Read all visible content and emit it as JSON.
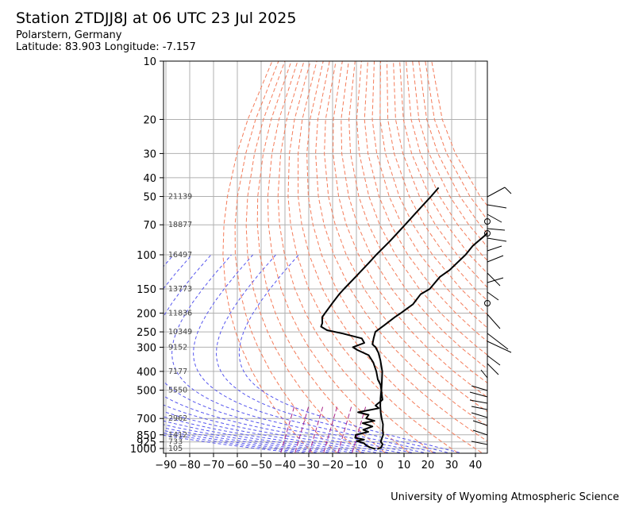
{
  "header": {
    "title": "Station 2TDJJ8J at 06 UTC 23 Jul 2025",
    "location": "Polarstern, Germany",
    "coordinates": "Latitude: 83.903 Longitude: -7.157"
  },
  "footer": {
    "credit": "University of Wyoming Atmospheric Science"
  },
  "chart_data": {
    "type": "line",
    "subtype": "skew-T log-P sounding",
    "x_axis": {
      "ticks": [
        -90,
        -80,
        -70,
        -60,
        -50,
        -40,
        -30,
        -20,
        -10,
        0,
        10,
        20,
        30,
        40
      ],
      "range": [
        -90,
        45
      ]
    },
    "y_axis": {
      "scale": "log",
      "ticks": [
        10,
        20,
        30,
        40,
        50,
        70,
        100,
        150,
        200,
        250,
        300,
        400,
        500,
        700,
        850,
        925,
        1000
      ],
      "range": [
        10,
        1050
      ]
    },
    "grid": true,
    "height_labels": [
      {
        "p": 50,
        "text": "21139"
      },
      {
        "p": 70,
        "text": "18877"
      },
      {
        "p": 100,
        "text": "16497"
      },
      {
        "p": 150,
        "text": "13773"
      },
      {
        "p": 200,
        "text": "11836"
      },
      {
        "p": 250,
        "text": "10349"
      },
      {
        "p": 300,
        "text": "9152"
      },
      {
        "p": 400,
        "text": "7177"
      },
      {
        "p": 500,
        "text": "5550"
      },
      {
        "p": 700,
        "text": "2962"
      },
      {
        "p": 850,
        "text": "1412"
      },
      {
        "p": 925,
        "text": "733"
      },
      {
        "p": 1000,
        "text": "105"
      }
    ],
    "series": [
      {
        "color": "#000000",
        "points": [
          {
            "p": 1007,
            "t": -1
          },
          {
            "p": 990,
            "t": 0
          },
          {
            "p": 950,
            "t": -0.8
          },
          {
            "p": 925,
            "t": -2.5
          },
          {
            "p": 900,
            "t": -3.2
          },
          {
            "p": 850,
            "t": -4.5
          },
          {
            "p": 800,
            "t": -6.8
          },
          {
            "p": 750,
            "t": -9
          },
          {
            "p": 700,
            "t": -12
          },
          {
            "p": 650,
            "t": -15
          },
          {
            "p": 600,
            "t": -18
          },
          {
            "p": 550,
            "t": -21
          },
          {
            "p": 500,
            "t": -24
          },
          {
            "p": 450,
            "t": -27.5
          },
          {
            "p": 400,
            "t": -31.5
          },
          {
            "p": 350,
            "t": -37
          },
          {
            "p": 320,
            "t": -41
          },
          {
            "p": 300,
            "t": -44.5
          },
          {
            "p": 290,
            "t": -47
          },
          {
            "p": 270,
            "t": -49
          },
          {
            "p": 250,
            "t": -51
          },
          {
            "p": 230,
            "t": -50
          },
          {
            "p": 210,
            "t": -49
          },
          {
            "p": 200,
            "t": -48.2
          },
          {
            "p": 180,
            "t": -46.8
          },
          {
            "p": 160,
            "t": -47.8
          },
          {
            "p": 150,
            "t": -46.2
          },
          {
            "p": 130,
            "t": -47
          },
          {
            "p": 120,
            "t": -45.8
          },
          {
            "p": 100,
            "t": -45.5
          },
          {
            "p": 90,
            "t": -46.2
          },
          {
            "p": 80,
            "t": -45.5
          },
          {
            "p": 70,
            "t": -45.6
          },
          {
            "p": 60,
            "t": -45.2
          },
          {
            "p": 50,
            "t": -44.8
          },
          {
            "p": 45,
            "t": -45.3
          }
        ]
      },
      {
        "color": "#000000",
        "points": [
          {
            "p": 1007,
            "t": -1.8
          },
          {
            "p": 985,
            "t": -5
          },
          {
            "p": 960,
            "t": -7.5
          },
          {
            "p": 940,
            "t": -9
          },
          {
            "p": 915,
            "t": -13
          },
          {
            "p": 900,
            "t": -10.5
          },
          {
            "p": 880,
            "t": -15
          },
          {
            "p": 850,
            "t": -16
          },
          {
            "p": 820,
            "t": -12
          },
          {
            "p": 800,
            "t": -15
          },
          {
            "p": 770,
            "t": -12.5
          },
          {
            "p": 740,
            "t": -18
          },
          {
            "p": 720,
            "t": -14
          },
          {
            "p": 700,
            "t": -18.5
          },
          {
            "p": 670,
            "t": -19
          },
          {
            "p": 650,
            "t": -24.5
          },
          {
            "p": 620,
            "t": -17.5
          },
          {
            "p": 600,
            "t": -20
          },
          {
            "p": 560,
            "t": -19.5
          },
          {
            "p": 520,
            "t": -22.5
          },
          {
            "p": 500,
            "t": -24
          },
          {
            "p": 470,
            "t": -26.5
          },
          {
            "p": 440,
            "t": -30
          },
          {
            "p": 400,
            "t": -34
          },
          {
            "p": 360,
            "t": -39
          },
          {
            "p": 330,
            "t": -44
          },
          {
            "p": 310,
            "t": -51
          },
          {
            "p": 300,
            "t": -54
          },
          {
            "p": 285,
            "t": -51
          },
          {
            "p": 270,
            "t": -54
          },
          {
            "p": 255,
            "t": -64
          },
          {
            "p": 245,
            "t": -72
          },
          {
            "p": 235,
            "t": -76
          },
          {
            "p": 225,
            "t": -77
          },
          {
            "p": 210,
            "t": -79.5
          },
          {
            "p": 200,
            "t": -80
          },
          {
            "p": 180,
            "t": -81
          },
          {
            "p": 160,
            "t": -82
          },
          {
            "p": 150,
            "t": -82.2
          },
          {
            "p": 130,
            "t": -82.4
          },
          {
            "p": 110,
            "t": -82.7
          },
          {
            "p": 100,
            "t": -83
          },
          {
            "p": 85,
            "t": -83
          },
          {
            "p": 70,
            "t": -83.5
          },
          {
            "p": 60,
            "t": -84
          },
          {
            "p": 50,
            "t": -84.5
          },
          {
            "p": 45,
            "t": -85
          }
        ]
      }
    ]
  },
  "colors": {
    "grid": "#b0b0b0",
    "dry_adiabats": "#f47c5a",
    "moist_adiabats": "#5555ee",
    "mixing_ratio": "#aa2288"
  }
}
